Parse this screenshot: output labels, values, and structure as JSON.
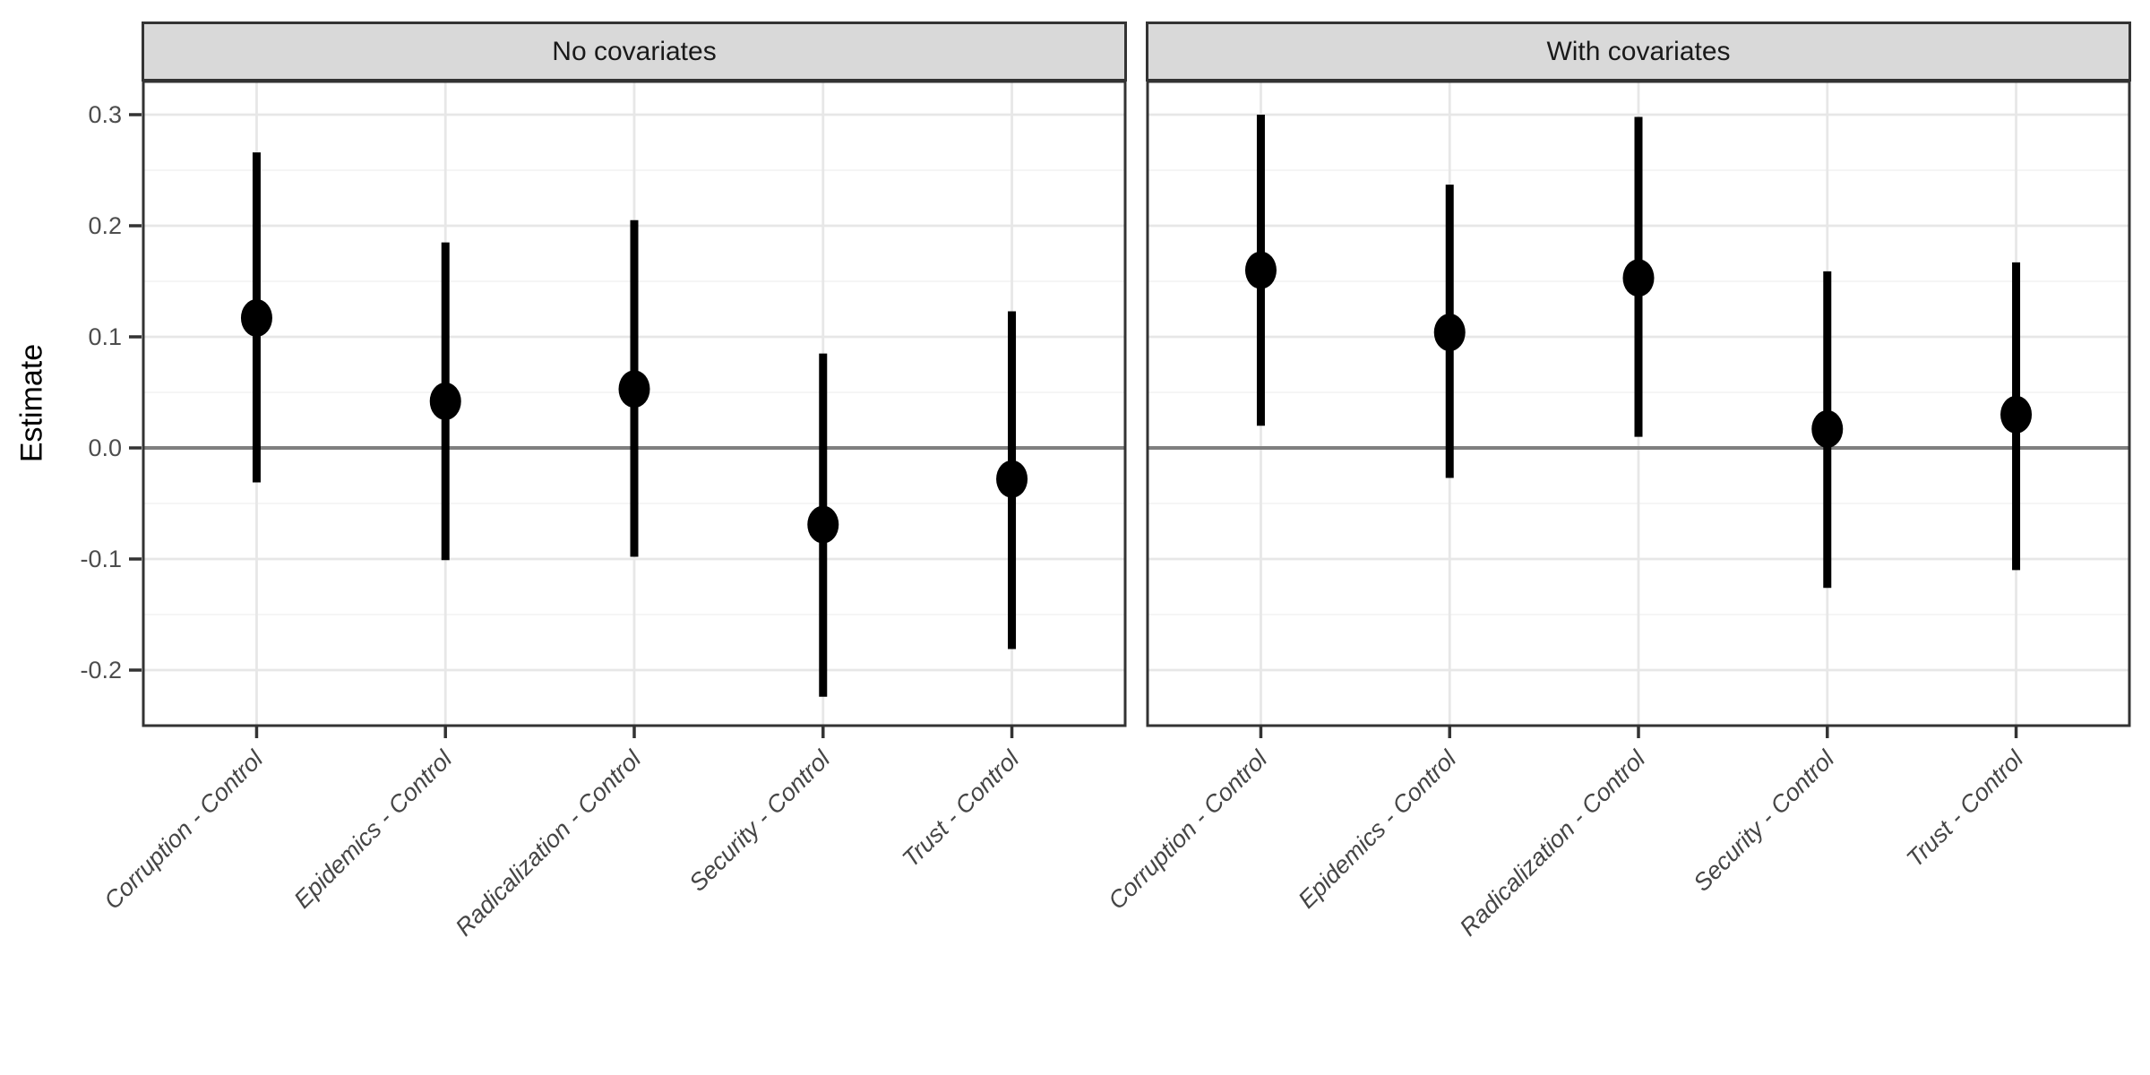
{
  "chart_data": {
    "type": "pointrange",
    "title": "",
    "ylabel": "Estimate",
    "xlabel": "",
    "legend": "none",
    "grid": {
      "major_step": 0.1,
      "minor_step": 0.05,
      "minor_ticks": [
        0.25,
        0.15,
        0.05,
        -0.05,
        -0.15,
        -0.25
      ]
    },
    "ylim": [
      -0.25,
      0.33
    ],
    "reference_line": {
      "y": 0.0
    },
    "categories": [
      "Corruption - Control",
      "Epidemics - Control",
      "Radicalization - Control",
      "Security - Control",
      "Trust - Control"
    ],
    "y_ticks": [
      {
        "value": 0.3,
        "label": "0.3"
      },
      {
        "value": 0.2,
        "label": "0.2"
      },
      {
        "value": 0.1,
        "label": "0.1"
      },
      {
        "value": 0.0,
        "label": "0.0"
      },
      {
        "value": -0.1,
        "label": "-0.1"
      },
      {
        "value": -0.2,
        "label": "-0.2"
      }
    ],
    "facets": [
      {
        "label": "No covariates",
        "points": [
          {
            "category": "Corruption - Control",
            "estimate": 0.117,
            "lower": -0.031,
            "upper": 0.266
          },
          {
            "category": "Epidemics - Control",
            "estimate": 0.042,
            "lower": -0.101,
            "upper": 0.185
          },
          {
            "category": "Radicalization - Control",
            "estimate": 0.053,
            "lower": -0.098,
            "upper": 0.205
          },
          {
            "category": "Security - Control",
            "estimate": -0.069,
            "lower": -0.224,
            "upper": 0.085
          },
          {
            "category": "Trust - Control",
            "estimate": -0.028,
            "lower": -0.181,
            "upper": 0.123
          }
        ]
      },
      {
        "label": "With covariates",
        "points": [
          {
            "category": "Corruption - Control",
            "estimate": 0.16,
            "lower": 0.02,
            "upper": 0.3
          },
          {
            "category": "Epidemics - Control",
            "estimate": 0.104,
            "lower": -0.027,
            "upper": 0.237
          },
          {
            "category": "Radicalization - Control",
            "estimate": 0.153,
            "lower": 0.01,
            "upper": 0.298
          },
          {
            "category": "Security - Control",
            "estimate": 0.017,
            "lower": -0.126,
            "upper": 0.159
          },
          {
            "category": "Trust - Control",
            "estimate": 0.03,
            "lower": -0.11,
            "upper": 0.167
          }
        ]
      }
    ],
    "styles": {
      "point": "#000000",
      "interval": "#000000",
      "grid_major": "#e7e7e7",
      "grid_minor": "#f2f2f2",
      "zero_line": "#7f7f7f",
      "panel_border": "#333333",
      "strip_fill": "#d9d9d9",
      "strip_border": "#333333",
      "strip_text": "#1a1a1a",
      "axis_text": "#4d4d4d",
      "tick_marks": "#333333"
    }
  }
}
